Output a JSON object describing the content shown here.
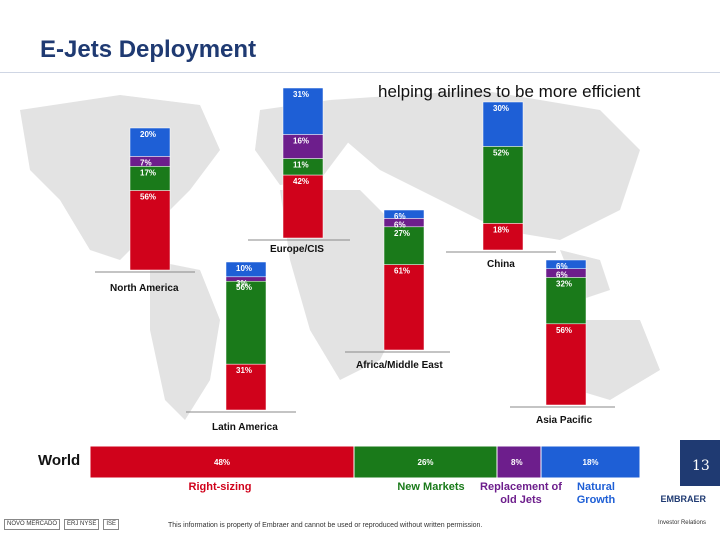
{
  "header": {
    "title": "E-Jets Deployment",
    "subtitle": "helping airlines to be more efficient"
  },
  "colors": {
    "right_sizing": "#d0021b",
    "new_markets": "#1a7a1a",
    "replacement": "#6d1e8c",
    "natural_growth": "#1e5fd6",
    "title": "#1f3a72"
  },
  "chart_data": {
    "type": "bar",
    "stacked": true,
    "segments_order_bottom_to_top": [
      "Right-sizing",
      "New Markets",
      "Replacement of old Jets",
      "Natural Growth"
    ],
    "regions": [
      {
        "name": "North America",
        "values": {
          "right_sizing": 56,
          "new_markets": 17,
          "replacement": 7,
          "natural_growth": 20
        },
        "labels": [
          "56%",
          "17%",
          "7%",
          "20%"
        ]
      },
      {
        "name": "Europe/CIS",
        "values": {
          "right_sizing": 42,
          "new_markets": 11,
          "replacement": 16,
          "natural_growth": 31
        },
        "labels": [
          "42%",
          "11%",
          "16%",
          "31%"
        ]
      },
      {
        "name": "Africa/Middle East",
        "values": {
          "right_sizing": 61,
          "new_markets": 27,
          "replacement": 6,
          "natural_growth": 6
        },
        "labels": [
          "61%",
          "27%",
          "6%",
          "6%"
        ]
      },
      {
        "name": "China",
        "values": {
          "right_sizing": 18,
          "new_markets": 52,
          "replacement": 0,
          "natural_growth": 30
        },
        "labels": [
          "18%",
          "52%",
          "",
          "30%"
        ]
      },
      {
        "name": "Latin America",
        "values": {
          "right_sizing": 31,
          "new_markets": 56,
          "replacement": 3,
          "natural_growth": 10
        },
        "labels": [
          "31%",
          "56%",
          "3%",
          "10%"
        ]
      },
      {
        "name": "Asia Pacific",
        "values": {
          "right_sizing": 56,
          "new_markets": 32,
          "replacement": 6,
          "natural_growth": 6
        },
        "labels": [
          "56%",
          "32%",
          "6%",
          "6%"
        ]
      }
    ],
    "world": {
      "label": "World",
      "values": {
        "right_sizing": 48,
        "new_markets": 26,
        "replacement": 8,
        "natural_growth": 18
      },
      "labels": [
        "48%",
        "26%",
        "8%",
        "18%"
      ]
    }
  },
  "legend": {
    "right_sizing": "Right-sizing",
    "new_markets": "New Markets",
    "replacement_line1": "Replacement of",
    "replacement_line2": "old Jets",
    "natural_growth_line1": "Natural",
    "natural_growth_line2": "Growth"
  },
  "page_number": "13",
  "footer": {
    "disclaimer": "This information is property of Embraer and cannot be used or reproduced without written permission.",
    "brand": "EMBRAER",
    "brand_sub": "Investor Relations",
    "logos": [
      "NOVO MERCADO",
      "ERJ NYSE",
      "ISE"
    ]
  }
}
